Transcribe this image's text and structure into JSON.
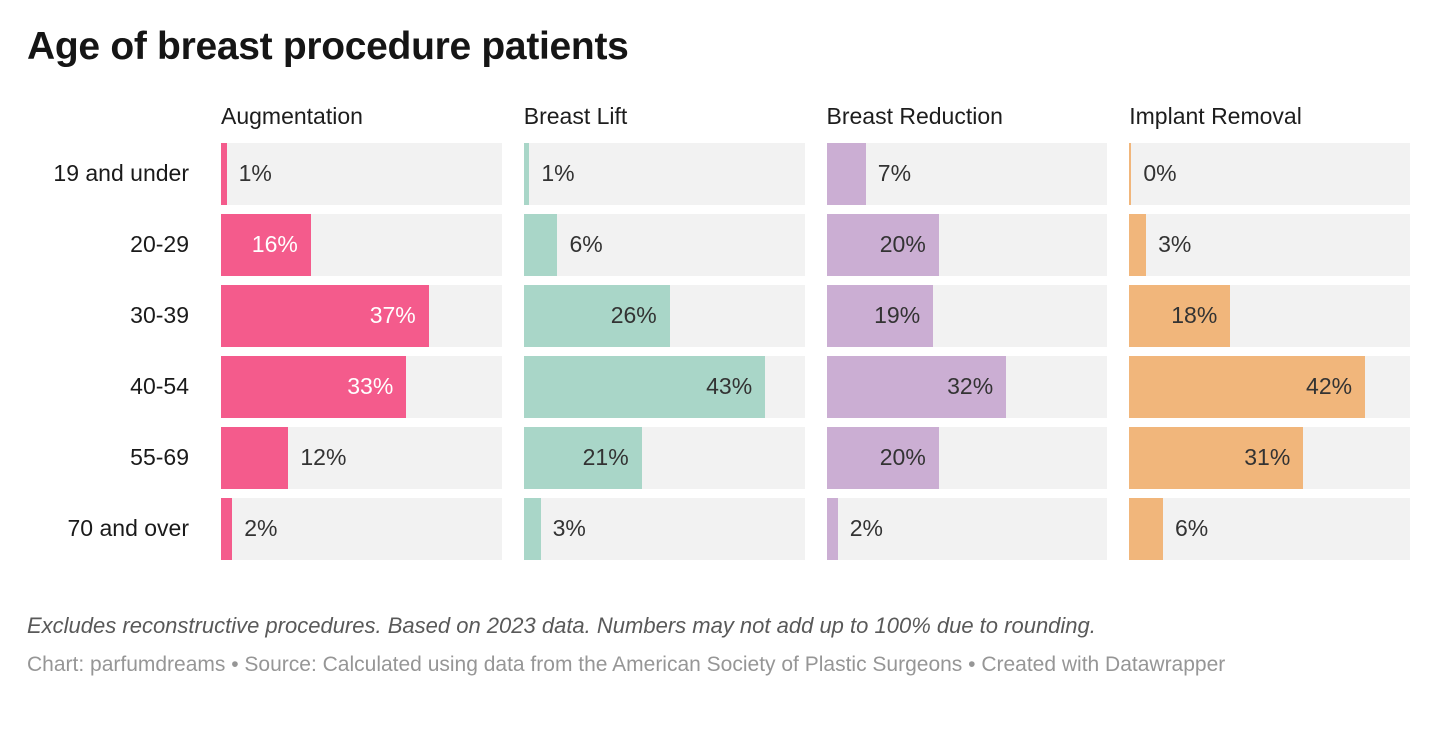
{
  "title": "Age of breast procedure patients",
  "notes": "Excludes reconstructive procedures. Based on 2023 data. Numbers may not add up to 100% due to rounding.",
  "credit": "Chart: parfumdreams • Source: Calculated using data from the American Society of Plastic Surgeons • Created with Datawrapper",
  "colors": {
    "track": "#F2F2F2",
    "label_dark": "#333333",
    "label_light": "#ffffff",
    "title": "#151515"
  },
  "chart_data": {
    "type": "bar",
    "layout": "split-bars-4-columns",
    "value_suffix": "%",
    "xmax": 50,
    "grid": false,
    "categories": [
      "19 and under",
      "20-29",
      "30-39",
      "40-54",
      "55-69",
      "70 and over"
    ],
    "series": [
      {
        "name": "Augmentation",
        "color": "#F45B8C",
        "inside_label_color": "#ffffff",
        "values": [
          1,
          16,
          37,
          33,
          12,
          2
        ],
        "label_inside": [
          false,
          true,
          true,
          true,
          false,
          false
        ]
      },
      {
        "name": "Breast Lift",
        "color": "#A9D6C8",
        "inside_label_color": "#333333",
        "values": [
          1,
          6,
          26,
          43,
          21,
          3
        ],
        "label_inside": [
          false,
          false,
          true,
          true,
          true,
          false
        ]
      },
      {
        "name": "Breast Reduction",
        "color": "#CBAED3",
        "inside_label_color": "#333333",
        "values": [
          7,
          20,
          19,
          32,
          20,
          2
        ],
        "label_inside": [
          false,
          true,
          true,
          true,
          true,
          false
        ]
      },
      {
        "name": "Implant Removal",
        "color": "#F1B67B",
        "inside_label_color": "#333333",
        "values": [
          0,
          3,
          18,
          42,
          31,
          6
        ],
        "label_inside": [
          false,
          false,
          true,
          true,
          true,
          false
        ]
      }
    ]
  }
}
